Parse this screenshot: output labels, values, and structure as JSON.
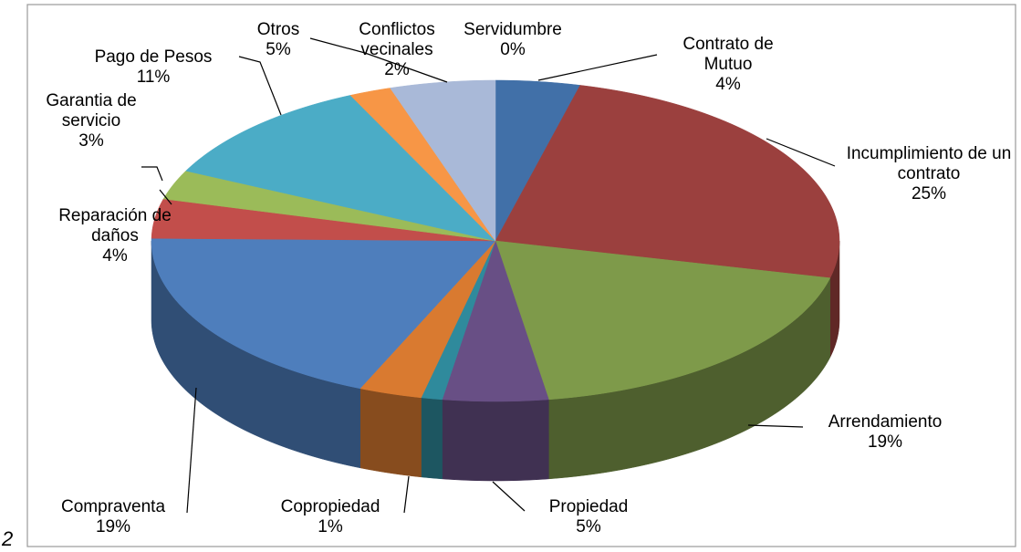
{
  "chart_data": {
    "type": "pie3d",
    "categories": [
      "Contrato de Mutuo",
      "Incumplimiento de un contrato",
      "Arrendamiento",
      "Propiedad",
      "Copropiedad",
      null,
      "Compraventa",
      "Reparación de daños",
      "Garantia de servicio",
      "Servidumbre",
      "Pago de Pesos",
      "Conflictos vecinales",
      "Otros"
    ],
    "values": [
      4,
      25,
      19,
      5,
      1,
      3,
      19,
      4,
      3,
      0,
      11,
      2,
      5
    ],
    "value_labels": [
      "4%",
      "25%",
      "19%",
      "5%",
      "1%",
      null,
      "19%",
      "4%",
      "3%",
      "0%",
      "11%",
      "2%",
      "5%"
    ],
    "colors": [
      "#4170a8",
      "#9b403e",
      "#7e9a4a",
      "#684f85",
      "#2f8a9c",
      "#d97a30",
      "#4e7ebc",
      "#c24e4b",
      "#9bbb59",
      "#8064a2",
      "#4bacc6",
      "#f79646",
      "#a9b9d8"
    ],
    "annotations": [
      "2"
    ]
  }
}
